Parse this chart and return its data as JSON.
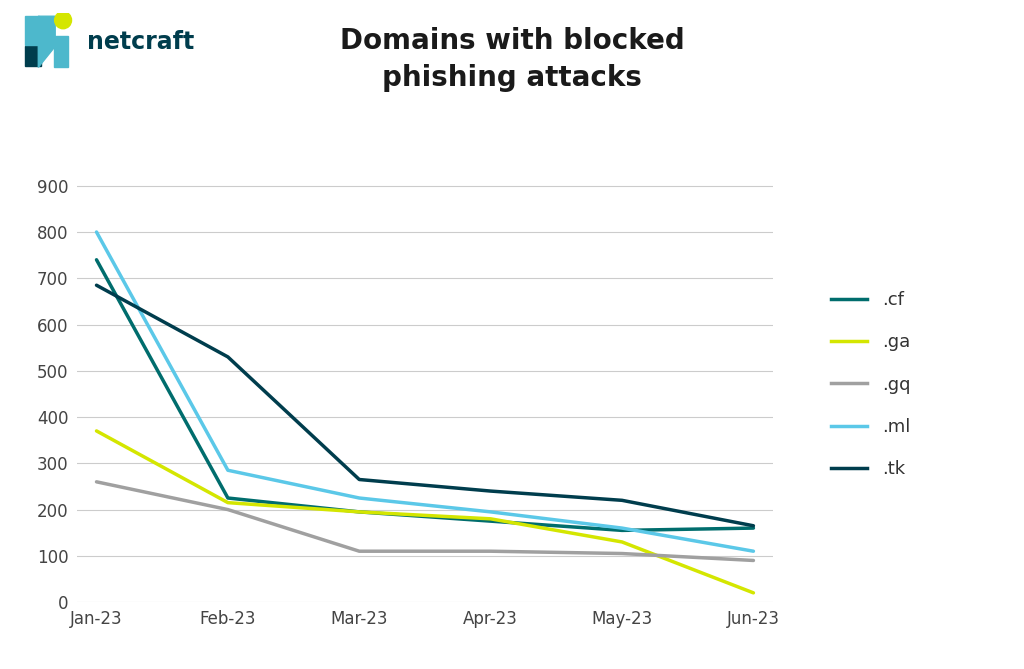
{
  "title": "Domains with blocked\nphishing attacks",
  "x_labels": [
    "Jan-23",
    "Feb-23",
    "Mar-23",
    "Apr-23",
    "May-23",
    "Jun-23"
  ],
  "series_order": [
    ".cf",
    ".ga",
    ".gq",
    ".ml",
    ".tk"
  ],
  "series": {
    ".cf": {
      "values": [
        740,
        225,
        195,
        175,
        155,
        160
      ],
      "color": "#006d6d"
    },
    ".ga": {
      "values": [
        370,
        215,
        195,
        180,
        130,
        20
      ],
      "color": "#d4e600"
    },
    ".gq": {
      "values": [
        260,
        200,
        110,
        110,
        105,
        90
      ],
      "color": "#a0a0a0"
    },
    ".ml": {
      "values": [
        800,
        285,
        225,
        195,
        160,
        110
      ],
      "color": "#5bc8e8"
    },
    ".tk": {
      "values": [
        685,
        530,
        265,
        240,
        220,
        165
      ],
      "color": "#003d4d"
    }
  },
  "ylim": [
    0,
    940
  ],
  "yticks": [
    0,
    100,
    200,
    300,
    400,
    500,
    600,
    700,
    800,
    900
  ],
  "background_color": "#ffffff",
  "grid_color": "#cccccc",
  "title_fontsize": 20,
  "tick_fontsize": 12,
  "legend_fontsize": 13,
  "line_width": 2.5,
  "logo_text_color": "#003d4d",
  "logo_teal": "#4db8cc",
  "logo_yellow": "#d4e600",
  "logo_dark": "#003d4d"
}
